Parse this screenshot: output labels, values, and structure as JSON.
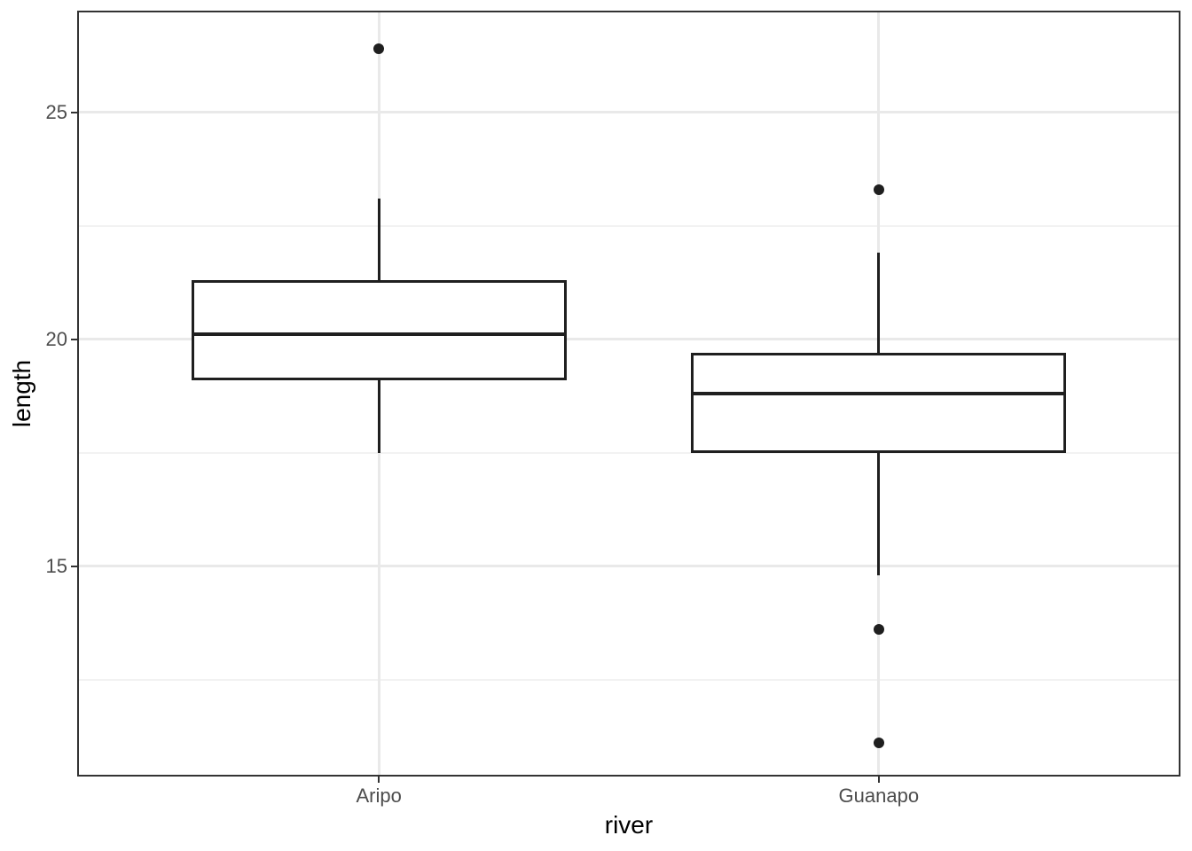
{
  "chart_data": {
    "type": "boxplot",
    "title": "",
    "xlabel": "river",
    "ylabel": "length",
    "categories": [
      "Aripo",
      "Guanapo"
    ],
    "ylim": [
      10.4,
      27.2
    ],
    "y_major_ticks": [
      15,
      20,
      25
    ],
    "y_minor_gridlines": [
      12.5,
      17.5,
      22.5
    ],
    "grid": "horizontal major+minor gridlines; vertical major gridline at each category",
    "legend": "none",
    "orientation": "vertical",
    "series": [
      {
        "category": "Aripo",
        "lower_whisker": 17.5,
        "q1": 19.1,
        "median": 20.1,
        "q3": 21.3,
        "upper_whisker": 23.1,
        "outliers": [
          26.4
        ]
      },
      {
        "category": "Guanapo",
        "lower_whisker": 14.8,
        "q1": 17.5,
        "median": 18.8,
        "q3": 19.7,
        "upper_whisker": 21.9,
        "outliers": [
          23.3,
          13.6,
          11.1
        ]
      }
    ],
    "colors": {
      "background": "#ffffff",
      "panel_fill": "#ffffff",
      "panel_border": "#333333",
      "grid_major": "#e9e9e9",
      "grid_minor": "#f2f2f2",
      "box_stroke": "#1f1f1f",
      "box_fill": "#ffffff",
      "median": "#1f1f1f",
      "outlier": "#1f1f1f",
      "tick_mark": "#333333",
      "tick_label": "#4d4d4d",
      "axis_title": "#000000"
    }
  }
}
